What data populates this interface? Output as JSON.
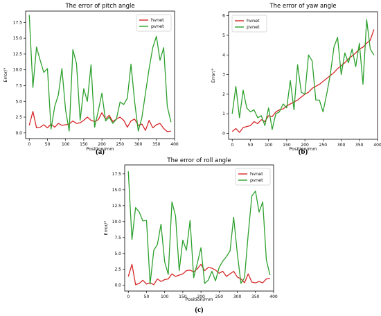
{
  "chart_data": [
    {
      "type": "line",
      "title": "The error of pitch angle",
      "xlabel": "Position/mm",
      "ylabel": "Error/°",
      "caption": "(a)",
      "xlim": [
        -10,
        400
      ],
      "ylim": [
        -0.9,
        19.3
      ],
      "xticks": [
        0,
        50,
        100,
        150,
        200,
        250,
        300,
        350,
        400
      ],
      "yticks": [
        0.0,
        2.5,
        5.0,
        7.5,
        10.0,
        12.5,
        15.0,
        17.5
      ],
      "ytick_labels": [
        "0.0",
        "2.5",
        "5.0",
        "7.5",
        "10.0",
        "12.5",
        "15.0",
        "17.5"
      ],
      "legend": "top-right",
      "series": [
        {
          "name": "hvnet",
          "color": "#d62728",
          "x": [
            0,
            10,
            20,
            30,
            40,
            50,
            60,
            70,
            80,
            90,
            100,
            110,
            120,
            130,
            140,
            150,
            160,
            170,
            180,
            190,
            200,
            210,
            220,
            230,
            240,
            250,
            260,
            270,
            280,
            290,
            300,
            310,
            320,
            330,
            340,
            350,
            360,
            370,
            380,
            390
          ],
          "y": [
            1.2,
            3.4,
            0.8,
            0.9,
            1.3,
            0.8,
            1.4,
            0.9,
            1.5,
            1.2,
            1.3,
            1.4,
            1.9,
            1.5,
            1.6,
            2.0,
            2.5,
            2.0,
            1.8,
            2.1,
            3.2,
            2.2,
            2.8,
            1.8,
            2.2,
            2.5,
            2.0,
            0.9,
            1.9,
            2.2,
            1.2,
            1.4,
            0.4,
            2.0,
            0.8,
            1.3,
            1.5,
            0.7,
            0.2,
            0.3
          ]
        },
        {
          "name": "pvnet",
          "color": "#2ca02c",
          "x": [
            0,
            10,
            20,
            30,
            40,
            50,
            60,
            70,
            80,
            90,
            100,
            110,
            120,
            130,
            140,
            150,
            160,
            170,
            180,
            190,
            200,
            210,
            220,
            230,
            240,
            250,
            260,
            270,
            280,
            290,
            300,
            310,
            320,
            330,
            340,
            350,
            360,
            370,
            380,
            390
          ],
          "y": [
            18.7,
            7.2,
            13.6,
            11.5,
            9.6,
            10.2,
            0.6,
            4.2,
            6.0,
            10.2,
            3.6,
            0.3,
            13.2,
            11.0,
            2.0,
            7.0,
            5.0,
            10.8,
            0.9,
            3.5,
            6.3,
            1.9,
            2.5,
            1.5,
            2.2,
            4.9,
            4.5,
            5.5,
            10.9,
            5.0,
            0.3,
            2.4,
            6.3,
            10.2,
            13.5,
            15.3,
            11.5,
            13.5,
            4.2,
            1.7
          ]
        }
      ]
    },
    {
      "type": "line",
      "title": "The error of yaw angle",
      "xlabel": "Position/mm",
      "ylabel": "Error/°",
      "caption": "(b)",
      "xlim": [
        -10,
        400
      ],
      "ylim": [
        -0.3,
        6.2
      ],
      "xticks": [
        0,
        50,
        100,
        150,
        200,
        250,
        300,
        350,
        400
      ],
      "yticks": [
        0,
        1,
        2,
        3,
        4,
        5,
        6
      ],
      "ytick_labels": [
        "0",
        "1",
        "2",
        "3",
        "4",
        "5",
        "6"
      ],
      "legend": "top-left",
      "series": [
        {
          "name": "hvnet",
          "color": "#d62728",
          "x": [
            0,
            10,
            20,
            30,
            40,
            50,
            60,
            70,
            80,
            90,
            100,
            110,
            120,
            130,
            140,
            150,
            160,
            170,
            180,
            190,
            200,
            210,
            220,
            230,
            240,
            250,
            260,
            270,
            280,
            290,
            300,
            310,
            320,
            330,
            340,
            350,
            360,
            370,
            380,
            390
          ],
          "y": [
            0.1,
            0.25,
            0.05,
            0.3,
            0.35,
            0.4,
            0.6,
            0.5,
            0.7,
            0.6,
            0.9,
            0.85,
            1.1,
            1.2,
            1.25,
            1.4,
            1.5,
            1.6,
            1.7,
            1.85,
            2.0,
            2.1,
            2.3,
            2.4,
            2.5,
            2.65,
            2.8,
            2.95,
            3.1,
            3.3,
            3.45,
            3.6,
            3.8,
            3.95,
            4.1,
            4.3,
            4.4,
            4.6,
            4.75,
            5.3
          ]
        },
        {
          "name": "pvnet",
          "color": "#2ca02c",
          "x": [
            0,
            10,
            20,
            30,
            40,
            50,
            60,
            70,
            80,
            90,
            100,
            110,
            120,
            130,
            140,
            150,
            160,
            170,
            180,
            190,
            200,
            210,
            220,
            230,
            240,
            250,
            260,
            270,
            280,
            290,
            300,
            310,
            320,
            330,
            340,
            350,
            360,
            370,
            380,
            390
          ],
          "y": [
            1.0,
            2.4,
            0.8,
            2.2,
            1.3,
            1.1,
            1.2,
            0.8,
            0.9,
            0.4,
            1.3,
            0.2,
            1.0,
            1.1,
            1.5,
            1.3,
            2.7,
            1.2,
            3.5,
            2.1,
            2.0,
            4.0,
            3.7,
            1.7,
            1.7,
            1.1,
            2.0,
            3.0,
            4.4,
            4.9,
            3.0,
            4.1,
            3.6,
            4.3,
            3.4,
            4.6,
            2.5,
            5.8,
            4.3,
            4.0
          ]
        }
      ]
    },
    {
      "type": "line",
      "title": "The error of roll angle",
      "xlabel": "Position/mm",
      "ylabel": "Error/°",
      "caption": "(c)",
      "xlim": [
        -10,
        400
      ],
      "ylim": [
        -0.9,
        18.9
      ],
      "xticks": [
        0,
        50,
        100,
        150,
        200,
        250,
        300,
        350,
        400
      ],
      "yticks": [
        0.0,
        2.5,
        5.0,
        7.5,
        10.0,
        12.5,
        15.0,
        17.5
      ],
      "ytick_labels": [
        "0.0",
        "2.5",
        "5.0",
        "7.5",
        "10.0",
        "12.5",
        "15.0",
        "17.5"
      ],
      "legend": "top-right",
      "series": [
        {
          "name": "hvnet",
          "color": "#d62728",
          "x": [
            0,
            10,
            20,
            30,
            40,
            50,
            60,
            70,
            80,
            90,
            100,
            110,
            120,
            130,
            140,
            150,
            160,
            170,
            180,
            190,
            200,
            210,
            220,
            230,
            240,
            250,
            260,
            270,
            280,
            290,
            300,
            310,
            320,
            330,
            340,
            350,
            360,
            370,
            380,
            390
          ],
          "y": [
            1.4,
            3.3,
            0.1,
            0.3,
            0.8,
            0.2,
            0.4,
            0.1,
            1.0,
            0.6,
            0.9,
            1.0,
            1.8,
            1.4,
            1.6,
            1.8,
            2.3,
            2.4,
            2.1,
            2.6,
            3.3,
            2.3,
            2.8,
            2.7,
            2.4,
            1.9,
            2.2,
            1.4,
            1.8,
            2.2,
            1.3,
            1.0,
            0.4,
            1.8,
            0.5,
            0.4,
            0.6,
            0.4,
            1.0,
            1.1
          ]
        },
        {
          "name": "pvnet",
          "color": "#2ca02c",
          "x": [
            0,
            10,
            20,
            30,
            40,
            50,
            60,
            70,
            80,
            90,
            100,
            110,
            120,
            130,
            140,
            150,
            160,
            170,
            180,
            190,
            200,
            210,
            220,
            230,
            240,
            250,
            260,
            270,
            280,
            290,
            300,
            310,
            320,
            330,
            340,
            350,
            360,
            370,
            380,
            390
          ],
          "y": [
            17.9,
            7.2,
            12.2,
            11.5,
            10.1,
            10.2,
            0.2,
            5.5,
            6.4,
            9.6,
            3.7,
            1.7,
            13.1,
            10.9,
            2.3,
            7.1,
            5.5,
            10.2,
            1.2,
            3.5,
            5.9,
            0.3,
            0.8,
            2.2,
            0.7,
            2.8,
            3.8,
            4.5,
            5.4,
            10.7,
            5.0,
            0.3,
            1.2,
            8.0,
            14.0,
            14.8,
            11.5,
            13.1,
            4.0,
            1.6
          ]
        }
      ]
    }
  ]
}
